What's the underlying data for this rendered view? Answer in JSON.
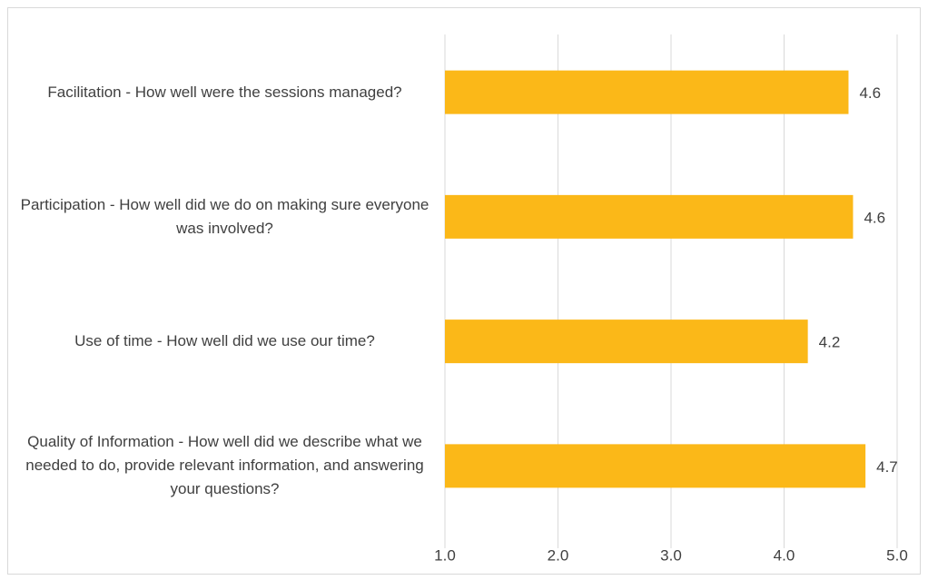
{
  "chart_data": {
    "type": "barh",
    "categories": [
      "Facilitation - How well were the sessions managed?",
      "Participation - How well did we do on making sure everyone was involved?",
      "Use of time - How well did we use our time?",
      "Quality of Information - How well did we describe what we needed to do, provide relevant information, and answering your questions?"
    ],
    "values": [
      4.57,
      4.61,
      4.21,
      4.72
    ],
    "value_labels": [
      "4.6",
      "4.6",
      "4.2",
      "4.7"
    ],
    "color": "#fbb818",
    "xlim": [
      1,
      5
    ],
    "xticks": [
      {
        "value": 1,
        "label": "1.0"
      },
      {
        "value": 2,
        "label": "2.0"
      },
      {
        "value": 3,
        "label": "3.0"
      },
      {
        "value": 4,
        "label": "4.0"
      },
      {
        "value": 5,
        "label": "5.0"
      }
    ],
    "grid": true
  }
}
